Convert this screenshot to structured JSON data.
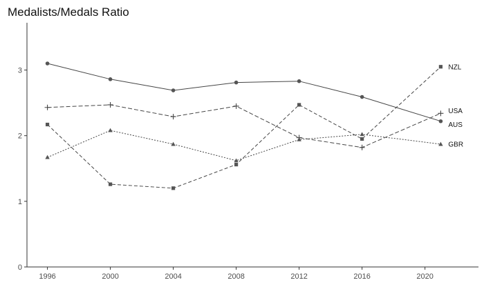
{
  "chart_data": {
    "type": "line",
    "title": "Medalists/Medals Ratio",
    "xlabel": "",
    "ylabel": "",
    "x": [
      1996,
      2000,
      2004,
      2008,
      2012,
      2016,
      2021
    ],
    "x_ticks": [
      1996,
      2000,
      2004,
      2008,
      2012,
      2016,
      2020
    ],
    "y_ticks": [
      0,
      1,
      2,
      3
    ],
    "xlim": [
      1994.7,
      2023.4
    ],
    "ylim": [
      0,
      3.72
    ],
    "grid": false,
    "legend": "labels at line ends",
    "series": [
      {
        "name": "AUS",
        "marker": "circle",
        "dash": "solid",
        "values": [
          3.1,
          2.86,
          2.69,
          2.81,
          2.83,
          2.59,
          2.22
        ]
      },
      {
        "name": "NZL",
        "marker": "square",
        "dash": "dashed",
        "values": [
          2.17,
          1.26,
          1.2,
          1.56,
          2.47,
          1.95,
          3.05
        ]
      },
      {
        "name": "USA",
        "marker": "plus",
        "dash": "longdash",
        "values": [
          2.43,
          2.47,
          2.29,
          2.45,
          1.97,
          1.82,
          2.34
        ]
      },
      {
        "name": "GBR",
        "marker": "triangle",
        "dash": "dotted",
        "values": [
          1.67,
          2.08,
          1.87,
          1.62,
          1.94,
          2.02,
          1.87
        ]
      }
    ]
  }
}
